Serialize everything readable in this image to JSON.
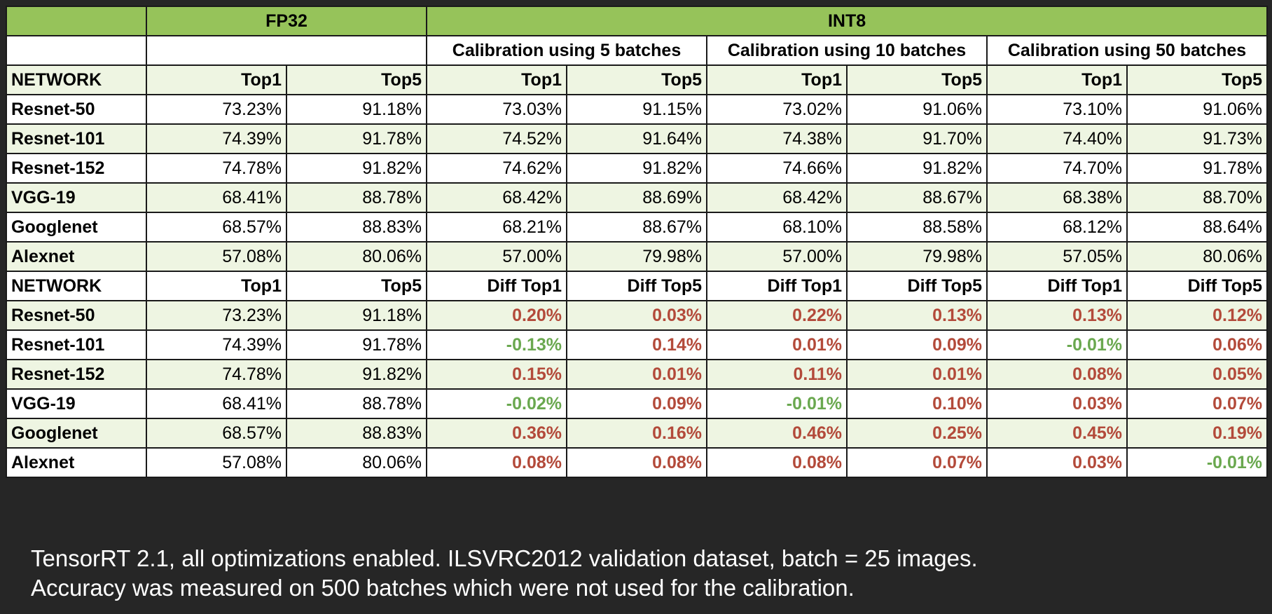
{
  "header": {
    "fp32": "FP32",
    "int8": "INT8",
    "calib": [
      "Calibration using 5 batches",
      "Calibration using 10 batches",
      "Calibration using 50 batches"
    ]
  },
  "accuracy_table": {
    "columns": [
      "NETWORK",
      "Top1",
      "Top5",
      "Top1",
      "Top5",
      "Top1",
      "Top5",
      "Top1",
      "Top5"
    ],
    "rows": [
      {
        "network": "Resnet-50",
        "values": [
          "73.23%",
          "91.18%",
          "73.03%",
          "91.15%",
          "73.02%",
          "91.06%",
          "73.10%",
          "91.06%"
        ]
      },
      {
        "network": "Resnet-101",
        "values": [
          "74.39%",
          "91.78%",
          "74.52%",
          "91.64%",
          "74.38%",
          "91.70%",
          "74.40%",
          "91.73%"
        ]
      },
      {
        "network": "Resnet-152",
        "values": [
          "74.78%",
          "91.82%",
          "74.62%",
          "91.82%",
          "74.66%",
          "91.82%",
          "74.70%",
          "91.78%"
        ]
      },
      {
        "network": "VGG-19",
        "values": [
          "68.41%",
          "88.78%",
          "68.42%",
          "88.69%",
          "68.42%",
          "88.67%",
          "68.38%",
          "88.70%"
        ]
      },
      {
        "network": "Googlenet",
        "values": [
          "68.57%",
          "88.83%",
          "68.21%",
          "88.67%",
          "68.10%",
          "88.58%",
          "68.12%",
          "88.64%"
        ]
      },
      {
        "network": "Alexnet",
        "values": [
          "57.08%",
          "80.06%",
          "57.00%",
          "79.98%",
          "57.00%",
          "79.98%",
          "57.05%",
          "80.06%"
        ]
      }
    ]
  },
  "diff_table": {
    "columns": [
      "NETWORK",
      "Top1",
      "Top5",
      "Diff Top1",
      "Diff Top5",
      "Diff Top1",
      "Diff Top5",
      "Diff Top1",
      "Diff Top5"
    ],
    "rows": [
      {
        "network": "Resnet-50",
        "fp32": [
          "73.23%",
          "91.18%"
        ],
        "diffs": [
          "0.20%",
          "0.03%",
          "0.22%",
          "0.13%",
          "0.13%",
          "0.12%"
        ]
      },
      {
        "network": "Resnet-101",
        "fp32": [
          "74.39%",
          "91.78%"
        ],
        "diffs": [
          "-0.13%",
          "0.14%",
          "0.01%",
          "0.09%",
          "-0.01%",
          "0.06%"
        ]
      },
      {
        "network": "Resnet-152",
        "fp32": [
          "74.78%",
          "91.82%"
        ],
        "diffs": [
          "0.15%",
          "0.01%",
          "0.11%",
          "0.01%",
          "0.08%",
          "0.05%"
        ]
      },
      {
        "network": "VGG-19",
        "fp32": [
          "68.41%",
          "88.78%"
        ],
        "diffs": [
          "-0.02%",
          "0.09%",
          "-0.01%",
          "0.10%",
          "0.03%",
          "0.07%"
        ]
      },
      {
        "network": "Googlenet",
        "fp32": [
          "68.57%",
          "88.83%"
        ],
        "diffs": [
          "0.36%",
          "0.16%",
          "0.46%",
          "0.25%",
          "0.45%",
          "0.19%"
        ]
      },
      {
        "network": "Alexnet",
        "fp32": [
          "57.08%",
          "80.06%"
        ],
        "diffs": [
          "0.08%",
          "0.08%",
          "0.08%",
          "0.07%",
          "0.03%",
          "-0.01%"
        ]
      }
    ]
  },
  "colors": {
    "header_green": "#96c35a",
    "light_green": "#eef5e2",
    "positive_diff": "#b34a3a",
    "negative_diff": "#6aa84f",
    "background": "#262626"
  },
  "footer": {
    "line1": "TensorRT 2.1, all optimizations enabled. ILSVRC2012 validation dataset, batch = 25 images.",
    "line2": "Accuracy was measured on 500 batches which were not used for the calibration."
  }
}
